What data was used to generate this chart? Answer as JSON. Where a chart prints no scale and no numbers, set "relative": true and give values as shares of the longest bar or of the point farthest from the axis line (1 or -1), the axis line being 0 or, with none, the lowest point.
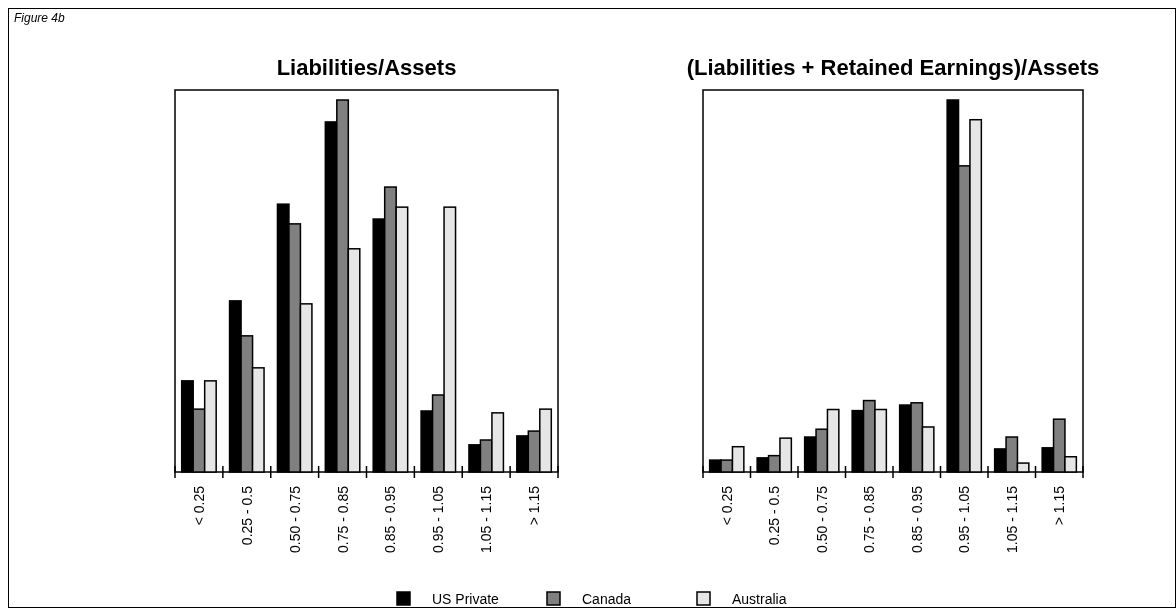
{
  "chart_data": [
    {
      "type": "bar",
      "title": "Liabilities/Assets",
      "annotations": [
        "Figure 4b"
      ],
      "relative": true,
      "legend": "bottom",
      "categories": [
        "< 0.25",
        "0.25 - 0.5",
        "0.50 - 0.75",
        "0.75 - 0.85",
        "0.85 - 0.95",
        "0.95 - 1.05",
        "1.05 - 1.15",
        "> 1.15"
      ],
      "series": [
        {
          "name": "US Private",
          "color": "#000000",
          "values": [
            0.245,
            0.46,
            0.72,
            0.941,
            0.68,
            0.164,
            0.073,
            0.097
          ]
        },
        {
          "name": "Canada",
          "color": "#808080",
          "values": [
            0.169,
            0.366,
            0.667,
            1,
            0.766,
            0.207,
            0.086,
            0.11
          ]
        },
        {
          "name": "Australia",
          "color": "#e6e6e6",
          "values": [
            0.245,
            0.28,
            0.452,
            0.6,
            0.712,
            0.712,
            0.159,
            0.169
          ]
        }
      ]
    },
    {
      "type": "bar",
      "title": "(Liabilities + Retained Earnings)/Assets",
      "relative": true,
      "categories": [
        "< 0.25",
        "0.25 - 0.5",
        "0.50 - 0.75",
        "0.75 - 0.85",
        "0.85 - 0.95",
        "0.95 - 1.05",
        "1.05 - 1.15",
        "> 1.15"
      ],
      "series": [
        {
          "name": "US Private",
          "color": "#000000",
          "values": [
            0.032,
            0.038,
            0.094,
            0.165,
            0.18,
            1,
            0.062,
            0.065
          ]
        },
        {
          "name": "Canada",
          "color": "#808080",
          "values": [
            0.032,
            0.044,
            0.115,
            0.192,
            0.186,
            0.823,
            0.094,
            0.142
          ]
        },
        {
          "name": "Australia",
          "color": "#e6e6e6",
          "values": [
            0.068,
            0.091,
            0.168,
            0.168,
            0.121,
            0.947,
            0.024,
            0.041
          ]
        }
      ]
    }
  ]
}
